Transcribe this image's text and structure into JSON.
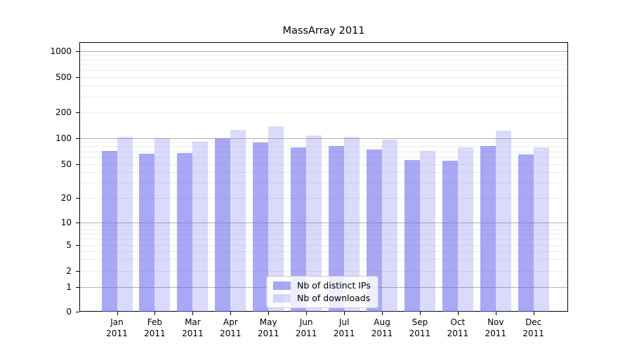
{
  "page": {
    "background": "#ffffff"
  },
  "chart_data": {
    "type": "bar",
    "title": "MassArray 2011",
    "categories": [
      "Jan",
      "Feb",
      "Mar",
      "Apr",
      "May",
      "Jun",
      "Jul",
      "Aug",
      "Sep",
      "Oct",
      "Nov",
      "Dec"
    ],
    "year_label": "2011",
    "series": [
      {
        "name": "Nb of distinct IPs",
        "color": "rgba(102,102,238,0.57)",
        "values": [
          71,
          66,
          67,
          100,
          88,
          78,
          80,
          73,
          56,
          54,
          81,
          65
        ]
      },
      {
        "name": "Nb of downloads",
        "color": "rgba(102,102,238,0.24)",
        "values": [
          103,
          100,
          90,
          123,
          137,
          106,
          102,
          95,
          71,
          78,
          121,
          78
        ]
      }
    ],
    "yticks": [
      0,
      1,
      2,
      5,
      10,
      20,
      50,
      100,
      200,
      500,
      1000
    ],
    "ylim": [
      0,
      1250
    ],
    "yscale": "symlog",
    "grid": true,
    "major_gridline_values": [
      1,
      10,
      100,
      1000
    ],
    "minor_gridline_steps": [
      2,
      3,
      4,
      5,
      6,
      7,
      8,
      9
    ],
    "legend_position": "inside-bottom-center",
    "axis_color": "#000000",
    "major_grid_color": "#b0b0b0",
    "minor_grid_color": "#ebebeb"
  }
}
